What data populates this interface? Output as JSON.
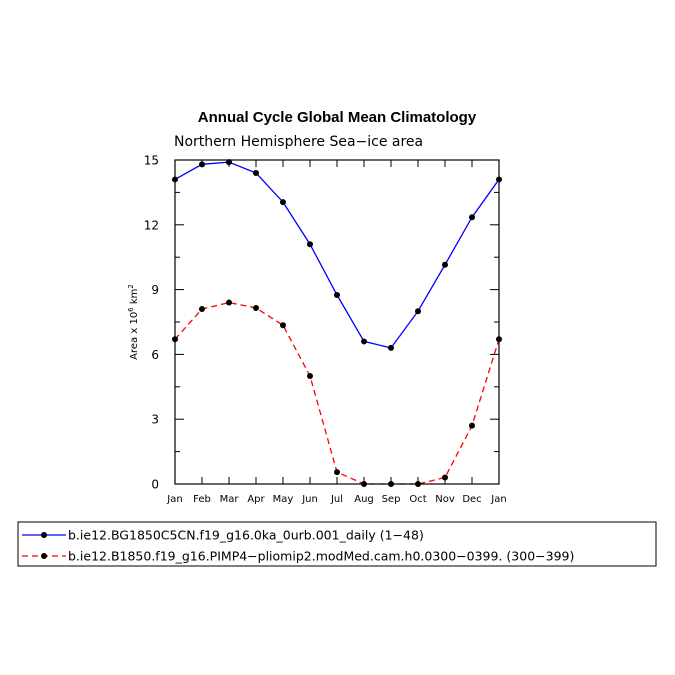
{
  "chart_data": {
    "type": "line",
    "title": "Annual Cycle Global Mean Climatology",
    "subtitle": "Northern Hemisphere Sea−ice area",
    "ylabel_prefix": "Area x 10",
    "ylabel_exp": "6",
    "ylabel_unit": " km",
    "ylabel_unit_exp": "2",
    "xlabel": "",
    "categories": [
      "Jan",
      "Feb",
      "Mar",
      "Apr",
      "May",
      "Jun",
      "Jul",
      "Aug",
      "Sep",
      "Oct",
      "Nov",
      "Dec",
      "Jan"
    ],
    "ylim": [
      0,
      15
    ],
    "yticks": [
      0,
      3,
      6,
      9,
      12,
      15
    ],
    "grid": false,
    "legend_position": "bottom",
    "series": [
      {
        "name": "b.ie12.BG1850C5CN.f19_g16.0ka_0urb.001_daily (1−48)",
        "color": "#0000ff",
        "dash": "solid",
        "values": [
          14.1,
          14.8,
          14.9,
          14.4,
          13.05,
          11.1,
          8.75,
          6.6,
          6.3,
          8.0,
          10.15,
          12.35,
          14.1
        ]
      },
      {
        "name": "b.ie12.B1850.f19_g16.PIMP4−pliomip2.modMed.cam.h0.0300−0399. (300−399)",
        "color": "#ff0000",
        "dash": "dashed",
        "values": [
          6.7,
          8.1,
          8.4,
          8.15,
          7.35,
          5.0,
          0.55,
          0.0,
          0.0,
          0.0,
          0.3,
          2.7,
          6.7
        ]
      }
    ]
  }
}
